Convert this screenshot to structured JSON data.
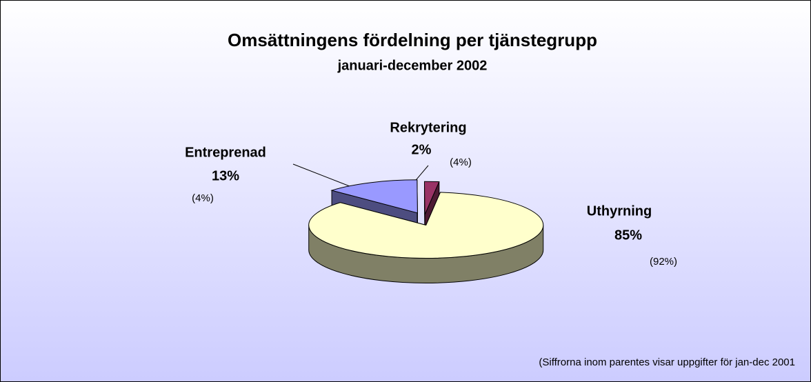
{
  "chart_data": {
    "type": "pie",
    "title": "Omsättningens fördelning per tjänstegrupp",
    "subtitle": "januari-december 2002",
    "categories": [
      "Uthyrning",
      "Entreprenad",
      "Rekrytering"
    ],
    "values": [
      85,
      13,
      2
    ],
    "value_labels": [
      "85%",
      "13%",
      "2%"
    ],
    "previous_labels": [
      "(92%)",
      "(4%)",
      "(4%)"
    ],
    "colors": [
      "#ffffcc",
      "#9999ff",
      "#993366"
    ],
    "footnote": "(Siffrorna inom parentes visar uppgifter för jan-dec 2001"
  }
}
